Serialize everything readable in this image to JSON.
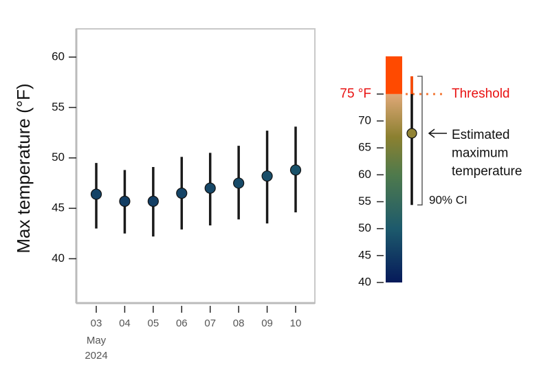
{
  "chart_data": {
    "type": "errorbar",
    "ylabel": "Max temperature (°F)",
    "categories": [
      "03",
      "04",
      "05",
      "06",
      "07",
      "08",
      "09",
      "10"
    ],
    "month": "May",
    "year": "2024",
    "values": [
      46.4,
      45.7,
      45.7,
      46.5,
      47.0,
      47.5,
      48.2,
      48.8
    ],
    "ci_low": [
      43.0,
      42.5,
      42.2,
      42.9,
      43.3,
      43.9,
      43.5,
      44.6
    ],
    "ci_high": [
      49.5,
      48.8,
      49.1,
      50.1,
      50.5,
      51.2,
      52.7,
      53.1
    ],
    "ylim": [
      35.6,
      62.8
    ],
    "yticks": [
      40,
      45,
      50,
      55,
      60
    ],
    "colormap": [
      {
        "value": 40,
        "color": "#061a5a"
      },
      {
        "value": 50,
        "color": "#1d5a6c"
      },
      {
        "value": 60,
        "color": "#4f7a4c"
      },
      {
        "value": 67,
        "color": "#8b8030"
      },
      {
        "value": 75,
        "color": "#e0a878"
      }
    ],
    "legend": {
      "ylim": [
        40,
        82
      ],
      "yticks": [
        40,
        45,
        50,
        55,
        60,
        65,
        70,
        {
          "value": 75,
          "label": "75 °F"
        }
      ],
      "threshold": 75,
      "threshold_label": "Threshold",
      "above_color": "#ff4a00",
      "example": {
        "value": 67.7,
        "ci_low": 54.4,
        "ci_high": 78.3
      },
      "estimate_label": [
        "Estimated",
        "maximum",
        "temperature"
      ],
      "ci_label": "90% CI"
    }
  }
}
